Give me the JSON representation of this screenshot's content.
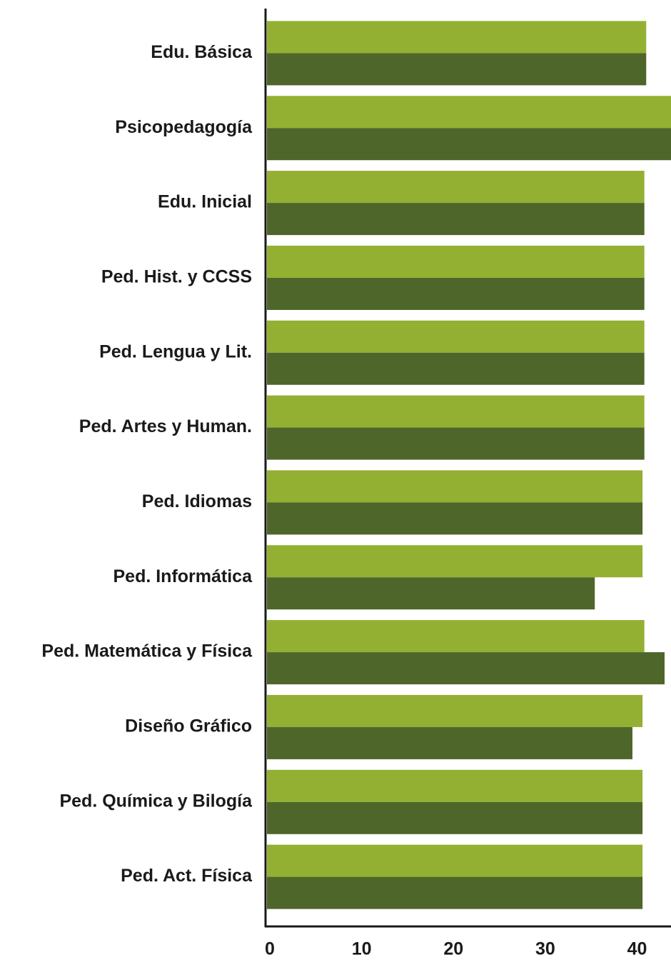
{
  "chart_data": {
    "type": "barh",
    "categories": [
      "Edu. Básica",
      "Psicopedagogía",
      "Edu. Inicial",
      "Ped. Hist. y CCSS",
      "Ped. Lengua y Lit.",
      "Ped. Artes y Human.",
      "Ped. Idiomas",
      "Ped. Informática",
      "Ped. Matemática y Física",
      "Diseño Gráfico",
      "Ped. Química y Bilogía",
      "Ped. Act. Física"
    ],
    "series": [
      {
        "color": "#93b032",
        "values": [
          41.3,
          44,
          41.1,
          41.1,
          41.1,
          41.1,
          40.9,
          40.9,
          41.1,
          40.9,
          40.9,
          40.9
        ]
      },
      {
        "color": "#4e6629",
        "values": [
          41.3,
          44,
          41.1,
          41.1,
          41.1,
          41.1,
          40.9,
          35.7,
          43.3,
          39.8,
          40.9,
          40.9
        ]
      }
    ],
    "xlim": [
      0,
      44
    ],
    "xticks": [
      0,
      10,
      20,
      30,
      40
    ],
    "grid": false
  }
}
